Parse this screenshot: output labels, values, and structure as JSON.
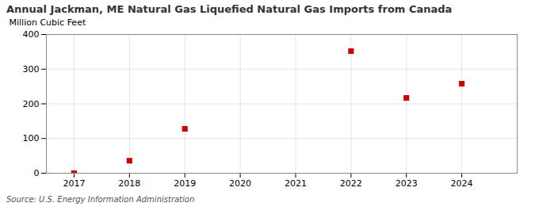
{
  "chart_data": {
    "type": "scatter",
    "title": "Annual Jackman, ME Natural Gas Liquefied Natural Gas Imports from Canada",
    "ylabel": "Million Cubic Feet",
    "source": "Source: U.S. Energy Information Administration",
    "x": [
      2017,
      2018,
      2019,
      2022,
      2023,
      2024
    ],
    "values": [
      0,
      36,
      128,
      352,
      217,
      258
    ],
    "color": "#cc0000",
    "marker": "square",
    "xlim": [
      2016.5,
      2025.0
    ],
    "xticks": [
      2017,
      2018,
      2019,
      2020,
      2021,
      2022,
      2023,
      2024
    ],
    "ylim": [
      0,
      400
    ],
    "yticks": [
      0,
      100,
      200,
      300,
      400
    ],
    "grid": true
  }
}
